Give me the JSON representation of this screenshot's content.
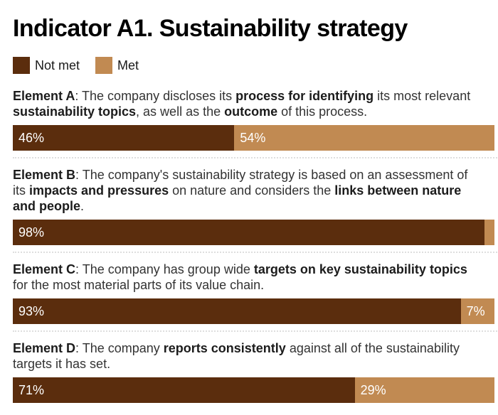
{
  "chart_data": {
    "type": "bar",
    "orientation": "horizontal-stacked",
    "title": "Indicator A1. Sustainability strategy",
    "value_format": "percent",
    "xlim": [
      0,
      100
    ],
    "grid": false,
    "legend_position": "top-left",
    "legend": [
      {
        "name": "Not met",
        "color": "#5b2d0d"
      },
      {
        "name": "Met",
        "color": "#c18a52"
      }
    ],
    "categories": [
      "Element A",
      "Element B",
      "Element C",
      "Element D"
    ],
    "series": [
      {
        "name": "Not met",
        "values": [
          46,
          98,
          93,
          71
        ]
      },
      {
        "name": "Met",
        "values": [
          54,
          2,
          7,
          29
        ]
      }
    ],
    "separator_color": "#dedede",
    "label_color": "#ffffff",
    "elements": [
      {
        "id": "Element A",
        "description": [
          {
            "text": "Element A",
            "bold": true
          },
          {
            "text": ": The company discloses its ",
            "bold": false
          },
          {
            "text": "process for identifying",
            "bold": true
          },
          {
            "text": " its most relevant ",
            "bold": false
          },
          {
            "text": "sustainability topics",
            "bold": true
          },
          {
            "text": ", as well as the ",
            "bold": false
          },
          {
            "text": "outcome",
            "bold": true
          },
          {
            "text": " of this process.",
            "bold": false
          }
        ],
        "not_met": 46,
        "met": 54,
        "not_met_label": "46%",
        "met_label": "54%"
      },
      {
        "id": "Element B",
        "description": [
          {
            "text": "Element B",
            "bold": true
          },
          {
            "text": ": The company's sustainability strategy is based on an assessment of its ",
            "bold": false
          },
          {
            "text": "impacts and pressures",
            "bold": true
          },
          {
            "text": " on nature and considers the ",
            "bold": false
          },
          {
            "text": "links between nature and people",
            "bold": true
          },
          {
            "text": ".",
            "bold": false
          }
        ],
        "not_met": 98,
        "met": 2,
        "not_met_label": "98%",
        "met_label": ""
      },
      {
        "id": "Element C",
        "description": [
          {
            "text": "Element C",
            "bold": true
          },
          {
            "text": ": The company has group wide ",
            "bold": false
          },
          {
            "text": "targets on key sustainability topics",
            "bold": true
          },
          {
            "text": " for the most material parts of its value chain.",
            "bold": false
          }
        ],
        "not_met": 93,
        "met": 7,
        "not_met_label": "93%",
        "met_label": "7%"
      },
      {
        "id": "Element D",
        "description": [
          {
            "text": "Element D",
            "bold": true
          },
          {
            "text": ": The company ",
            "bold": false
          },
          {
            "text": "reports consistently",
            "bold": true
          },
          {
            "text": " against all of the sustainability targets it has set.",
            "bold": false
          }
        ],
        "not_met": 71,
        "met": 29,
        "not_met_label": "71%",
        "met_label": "29%"
      }
    ]
  }
}
